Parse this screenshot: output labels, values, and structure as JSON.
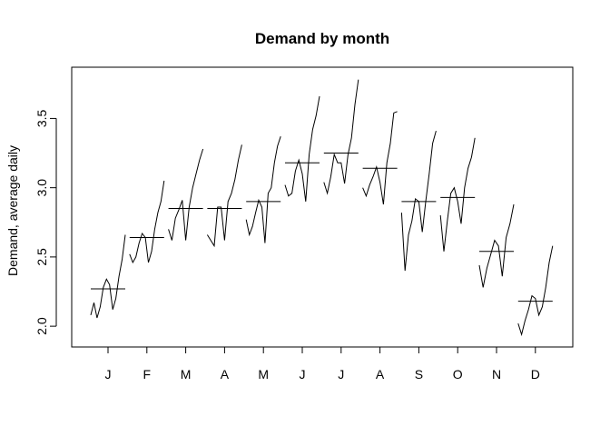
{
  "chart_data": {
    "type": "line",
    "title": "Demand by month",
    "xlabel": "",
    "ylabel": "Demand, average daily",
    "categories": [
      "J",
      "F",
      "M",
      "A",
      "M",
      "J",
      "J",
      "A",
      "S",
      "O",
      "N",
      "D"
    ],
    "yticks": [
      "2.0",
      "2.5",
      "3.0",
      "3.5"
    ],
    "ylim": [
      1.85,
      3.87
    ],
    "grid": false,
    "monthly_means": [
      2.27,
      2.64,
      2.85,
      2.85,
      2.9,
      3.18,
      3.25,
      3.14,
      2.9,
      2.93,
      2.54,
      2.18
    ],
    "subseries": [
      [
        2.08,
        2.17,
        2.06,
        2.14,
        2.28,
        2.34,
        2.3,
        2.12,
        2.2,
        2.36,
        2.48,
        2.66
      ],
      [
        2.52,
        2.46,
        2.5,
        2.6,
        2.67,
        2.64,
        2.46,
        2.54,
        2.7,
        2.82,
        2.9,
        3.05
      ],
      [
        2.7,
        2.62,
        2.78,
        2.84,
        2.91,
        2.62,
        2.86,
        3.0,
        3.1,
        3.2,
        3.28
      ],
      [
        2.66,
        2.62,
        2.58,
        2.86,
        2.86,
        2.62,
        2.9,
        2.96,
        3.06,
        3.2,
        3.31
      ],
      [
        2.77,
        2.66,
        2.72,
        2.82,
        2.91,
        2.86,
        2.6,
        2.96,
        3.0,
        3.18,
        3.3,
        3.37
      ],
      [
        3.02,
        2.94,
        2.96,
        3.12,
        3.2,
        3.1,
        2.9,
        3.24,
        3.42,
        3.52,
        3.66
      ],
      [
        3.04,
        2.96,
        3.08,
        3.24,
        3.18,
        3.18,
        3.03,
        3.24,
        3.36,
        3.6,
        3.78
      ],
      [
        3.0,
        2.94,
        3.02,
        3.08,
        3.15,
        3.04,
        2.88,
        3.18,
        3.32,
        3.54,
        3.55
      ],
      [
        2.82,
        2.4,
        2.66,
        2.76,
        2.92,
        2.9,
        2.68,
        2.9,
        3.1,
        3.32,
        3.41
      ],
      [
        2.8,
        2.54,
        2.76,
        2.96,
        3.0,
        2.9,
        2.74,
        3.0,
        3.14,
        3.22,
        3.36
      ],
      [
        2.44,
        2.28,
        2.42,
        2.52,
        2.62,
        2.58,
        2.36,
        2.64,
        2.74,
        2.88
      ],
      [
        2.02,
        1.94,
        2.04,
        2.12,
        2.22,
        2.2,
        2.08,
        2.14,
        2.28,
        2.46,
        2.58
      ]
    ]
  }
}
